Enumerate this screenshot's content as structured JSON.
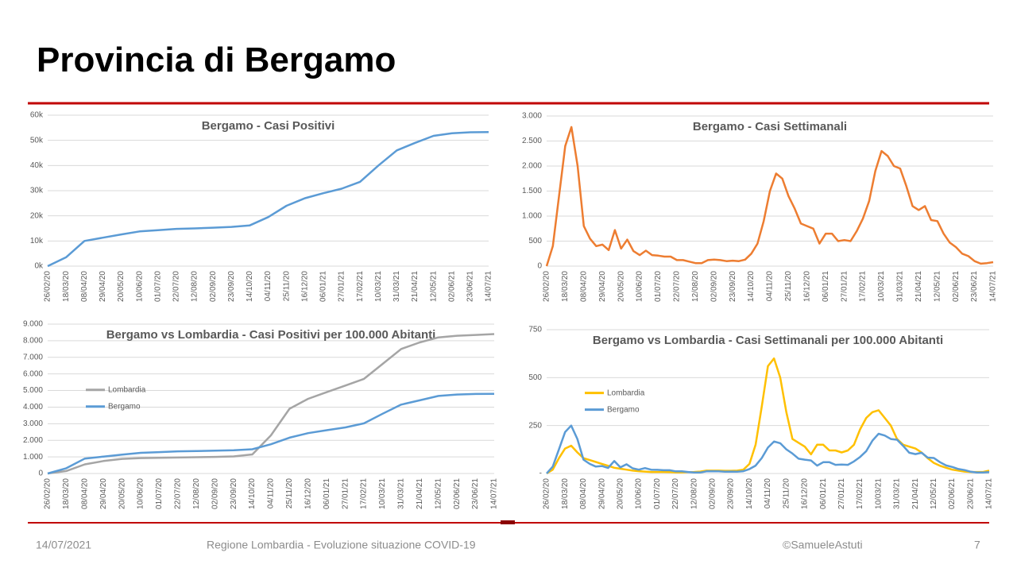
{
  "title": "Provincia di Bergamo",
  "footer": {
    "date": "14/07/2021",
    "source": "Regione Lombardia - Evoluzione situazione COVID-19",
    "author": "©SamueleAstuti",
    "page": "7"
  },
  "chart_data": [
    {
      "type": "line",
      "title": "Bergamo - Casi Positivi",
      "color": "#5b9bd5",
      "grid": true,
      "categories": [
        "26/02/20",
        "18/03/20",
        "08/04/20",
        "29/04/20",
        "20/05/20",
        "10/06/20",
        "01/07/20",
        "22/07/20",
        "12/08/20",
        "02/09/20",
        "23/09/20",
        "14/10/20",
        "04/11/20",
        "25/11/20",
        "16/12/20",
        "06/01/21",
        "27/01/21",
        "17/02/21",
        "10/03/21",
        "31/03/21",
        "21/04/21",
        "12/05/21",
        "02/06/21",
        "23/06/21",
        "14/07/21"
      ],
      "values": [
        0,
        3500,
        10000,
        11300,
        12600,
        13800,
        14300,
        14800,
        15000,
        15300,
        15600,
        16200,
        19500,
        24000,
        27000,
        29000,
        30800,
        33500,
        40000,
        46000,
        49000,
        51800,
        52800,
        53200,
        53300
      ],
      "ylim": [
        0,
        60000
      ],
      "yticks": [
        {
          "value": 0,
          "label": "0k"
        },
        {
          "value": 10000,
          "label": "10k"
        },
        {
          "value": 20000,
          "label": "20k"
        },
        {
          "value": 30000,
          "label": "30k"
        },
        {
          "value": 40000,
          "label": "40k"
        },
        {
          "value": 50000,
          "label": "50k"
        },
        {
          "value": 60000,
          "label": "60k"
        }
      ]
    },
    {
      "type": "line",
      "title": "Bergamo - Casi Settimanali",
      "color": "#ed7d31",
      "grid": true,
      "categories": [
        "26/02/20",
        null,
        null,
        "18/03/20",
        null,
        null,
        "08/04/20",
        null,
        null,
        "29/04/20",
        null,
        null,
        "20/05/20",
        null,
        null,
        "10/06/20",
        null,
        null,
        "01/07/20",
        null,
        null,
        "22/07/20",
        null,
        null,
        "12/08/20",
        null,
        null,
        "02/09/20",
        null,
        null,
        "23/09/20",
        null,
        null,
        "14/10/20",
        null,
        null,
        "04/11/20",
        null,
        null,
        "25/11/20",
        null,
        null,
        "16/12/20",
        null,
        null,
        "06/01/21",
        null,
        null,
        "27/01/21",
        null,
        null,
        "17/02/21",
        null,
        null,
        "10/03/21",
        null,
        null,
        "31/03/21",
        null,
        null,
        "21/04/21",
        null,
        null,
        "12/05/21",
        null,
        null,
        "02/06/21",
        null,
        null,
        "23/06/21",
        null,
        null,
        "14/07/21"
      ],
      "values": [
        0,
        400,
        1400,
        2400,
        2780,
        2000,
        800,
        550,
        400,
        430,
        320,
        720,
        350,
        530,
        300,
        220,
        310,
        220,
        210,
        190,
        190,
        120,
        120,
        90,
        60,
        60,
        120,
        130,
        120,
        100,
        110,
        100,
        130,
        250,
        450,
        900,
        1500,
        1850,
        1750,
        1400,
        1150,
        850,
        800,
        750,
        450,
        650,
        650,
        500,
        520,
        500,
        700,
        950,
        1300,
        1900,
        2300,
        2200,
        2000,
        1950,
        1600,
        1200,
        1120,
        1200,
        920,
        900,
        650,
        470,
        380,
        250,
        200,
        100,
        50,
        60,
        80
      ],
      "ylim": [
        0,
        3000
      ],
      "yticks": [
        0,
        500,
        {
          "value": 1000,
          "label": "1.000"
        },
        {
          "value": 1500,
          "label": "1.500"
        },
        {
          "value": 2000,
          "label": "2.000"
        },
        {
          "value": 2500,
          "label": "2.500"
        },
        {
          "value": 3000,
          "label": "3.000"
        }
      ]
    },
    {
      "type": "line",
      "title": "Bergamo vs Lombardia - Casi Positivi per 100.000 Abitanti",
      "grid": true,
      "legend": "left",
      "categories": [
        "26/02/20",
        "18/03/20",
        "08/04/20",
        "29/04/20",
        "20/05/20",
        "10/06/20",
        "01/07/20",
        "22/07/20",
        "12/08/20",
        "02/09/20",
        "23/09/20",
        "14/10/20",
        "04/11/20",
        "25/11/20",
        "16/12/20",
        "06/01/21",
        "27/01/21",
        "17/02/21",
        "10/03/21",
        "31/03/21",
        "21/04/21",
        "12/05/21",
        "02/06/21",
        "23/06/21",
        "14/07/21"
      ],
      "series": [
        {
          "name": "Lombardia",
          "color": "#a5a5a5",
          "values": [
            0,
            150,
            550,
            750,
            880,
            930,
            950,
            960,
            980,
            1000,
            1030,
            1150,
            2300,
            3900,
            4500,
            4900,
            5300,
            5700,
            6600,
            7500,
            7900,
            8200,
            8300,
            8350,
            8400
          ]
        },
        {
          "name": "Bergamo",
          "color": "#5b9bd5",
          "values": [
            0,
            315,
            900,
            1020,
            1135,
            1245,
            1290,
            1335,
            1350,
            1380,
            1405,
            1460,
            1760,
            2160,
            2430,
            2610,
            2775,
            3020,
            3600,
            4150,
            4410,
            4670,
            4760,
            4790,
            4800
          ]
        }
      ],
      "ylim": [
        0,
        9000
      ],
      "yticks": [
        0,
        {
          "value": 1000,
          "label": "1.000"
        },
        {
          "value": 2000,
          "label": "2.000"
        },
        {
          "value": 3000,
          "label": "3.000"
        },
        {
          "value": 4000,
          "label": "4.000"
        },
        {
          "value": 5000,
          "label": "5.000"
        },
        {
          "value": 6000,
          "label": "6.000"
        },
        {
          "value": 7000,
          "label": "7.000"
        },
        {
          "value": 8000,
          "label": "8.000"
        },
        {
          "value": 9000,
          "label": "9.000"
        }
      ]
    },
    {
      "type": "line",
      "title": "Bergamo vs Lombardia - Casi Settimanali per 100.000 Abitanti",
      "grid": true,
      "legend": "left",
      "categories": [
        "26/02/20",
        null,
        null,
        "18/03/20",
        null,
        null,
        "08/04/20",
        null,
        null,
        "29/04/20",
        null,
        null,
        "20/05/20",
        null,
        null,
        "10/06/20",
        null,
        null,
        "01/07/20",
        null,
        null,
        "22/07/20",
        null,
        null,
        "12/08/20",
        null,
        null,
        "02/09/20",
        null,
        null,
        "23/09/20",
        null,
        null,
        "14/10/20",
        null,
        null,
        "04/11/20",
        null,
        null,
        "25/11/20",
        null,
        null,
        "16/12/20",
        null,
        null,
        "06/01/21",
        null,
        null,
        "27/01/21",
        null,
        null,
        "17/02/21",
        null,
        null,
        "10/03/21",
        null,
        null,
        "31/03/21",
        null,
        null,
        "21/04/21",
        null,
        null,
        "12/05/21",
        null,
        null,
        "02/06/21",
        null,
        null,
        "23/06/21",
        null,
        null,
        "14/07/21"
      ],
      "series": [
        {
          "name": "Lombardia",
          "color": "#ffc000",
          "values": [
            0,
            20,
            80,
            130,
            145,
            110,
            80,
            70,
            60,
            50,
            40,
            30,
            25,
            20,
            15,
            12,
            10,
            8,
            8,
            8,
            7,
            6,
            6,
            7,
            8,
            10,
            15,
            15,
            15,
            14,
            14,
            15,
            20,
            50,
            150,
            350,
            560,
            600,
            500,
            320,
            180,
            160,
            140,
            100,
            150,
            150,
            120,
            120,
            110,
            120,
            150,
            230,
            290,
            320,
            330,
            290,
            250,
            180,
            150,
            140,
            130,
            110,
            80,
            55,
            40,
            30,
            20,
            15,
            10,
            8,
            8,
            8,
            15
          ]
        },
        {
          "name": "Bergamo",
          "color": "#5b9bd5",
          "values": [
            0,
            36,
            126,
            216,
            250,
            180,
            72,
            50,
            36,
            39,
            29,
            65,
            32,
            48,
            27,
            20,
            28,
            20,
            19,
            17,
            17,
            11,
            11,
            8,
            5,
            5,
            11,
            12,
            11,
            9,
            10,
            9,
            12,
            23,
            41,
            81,
            135,
            167,
            158,
            126,
            104,
            77,
            72,
            68,
            41,
            59,
            59,
            45,
            47,
            45,
            63,
            86,
            117,
            171,
            207,
            198,
            180,
            176,
            144,
            108,
            101,
            108,
            83,
            81,
            59,
            42,
            34,
            23,
            18,
            9,
            5,
            5,
            7
          ]
        }
      ],
      "ylim": [
        0,
        750
      ],
      "yticks": [
        {
          "value": 0,
          "label": "-"
        },
        250,
        500,
        750
      ]
    }
  ]
}
